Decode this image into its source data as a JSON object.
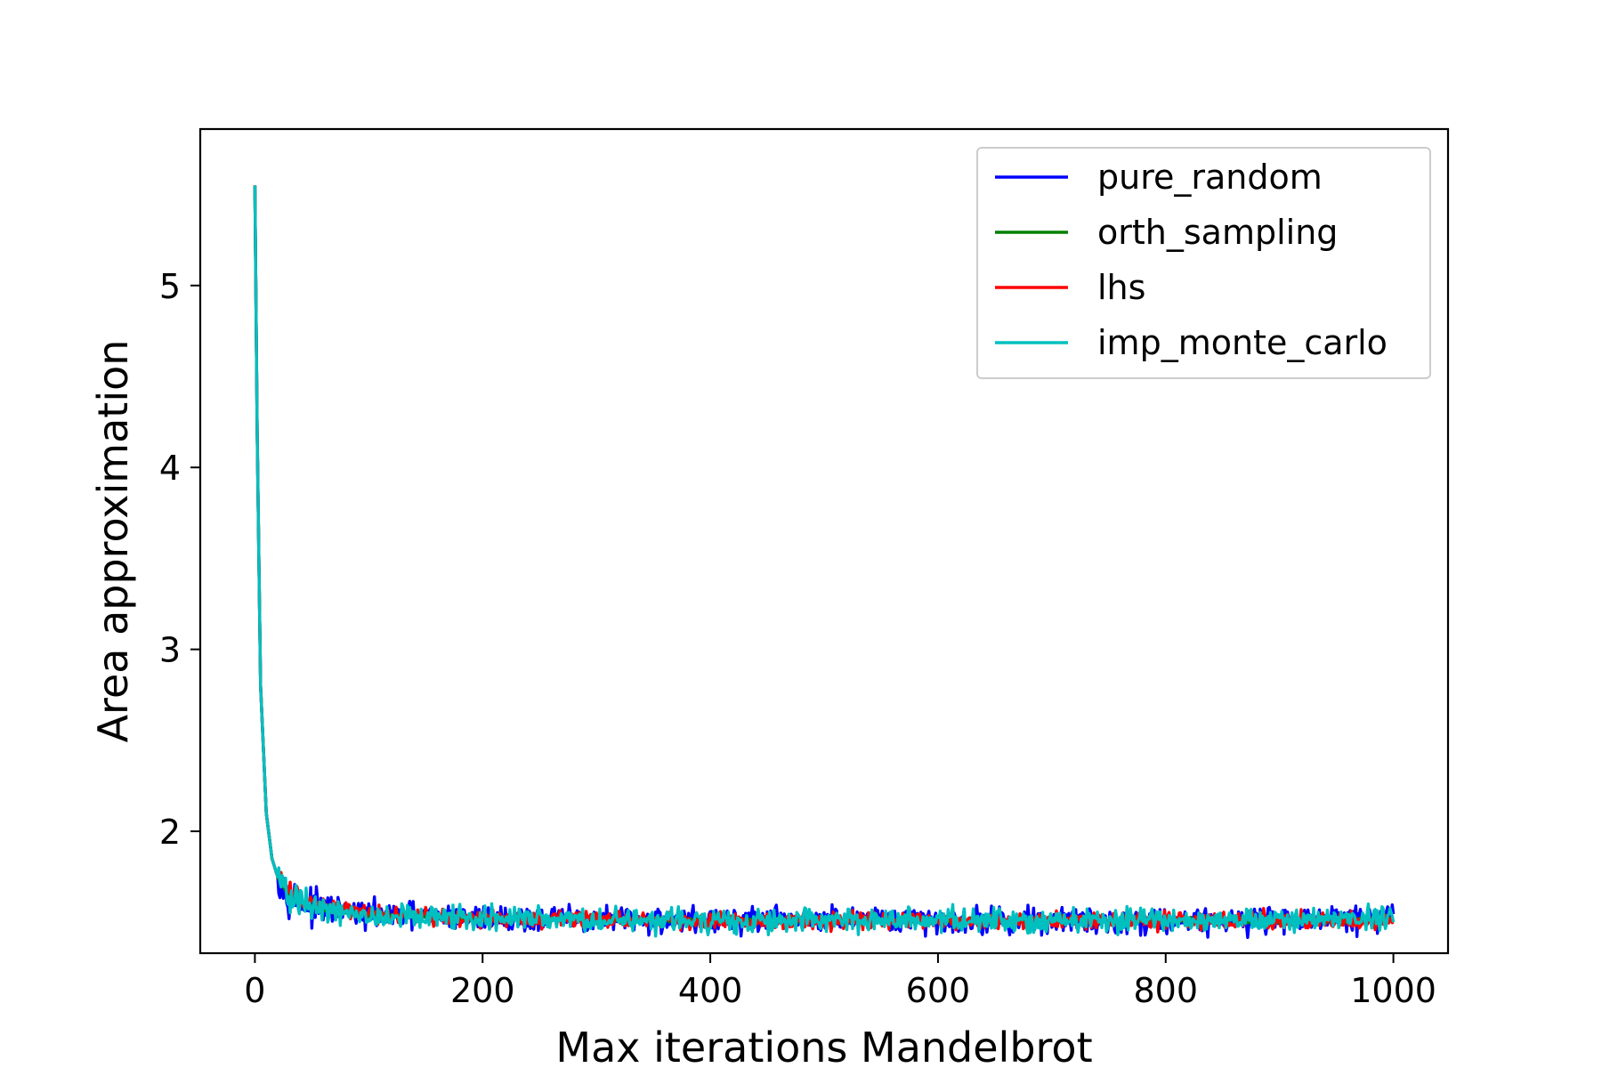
{
  "chart_data": {
    "type": "line",
    "title": "",
    "xlabel": "Max iterations Mandelbrot",
    "ylabel": "Area approximation",
    "xlim": [
      -48,
      1048
    ],
    "ylim": [
      1.33,
      5.86
    ],
    "xticks": [
      0,
      200,
      400,
      600,
      800,
      1000
    ],
    "xtick_labels": [
      "0",
      "200",
      "400",
      "600",
      "800",
      "1000"
    ],
    "yticks": [
      2,
      3,
      4,
      5
    ],
    "ytick_labels": [
      "2",
      "3",
      "4",
      "5"
    ],
    "grid": false,
    "legend_position": "upper right",
    "x_range": [
      0,
      1000
    ],
    "series": [
      {
        "name": "pure_random",
        "color": "#0000ff",
        "start_value": 5.55,
        "plateau_value": 1.507,
        "key_points": [
          [
            0,
            5.55
          ],
          [
            2,
            4.2
          ],
          [
            5,
            2.8
          ],
          [
            10,
            2.1
          ],
          [
            15,
            1.85
          ],
          [
            20,
            1.75
          ],
          [
            30,
            1.65
          ],
          [
            50,
            1.58
          ],
          [
            100,
            1.54
          ],
          [
            200,
            1.52
          ],
          [
            400,
            1.51
          ],
          [
            600,
            1.51
          ],
          [
            800,
            1.51
          ],
          [
            1000,
            1.52
          ]
        ],
        "noise_amplitude": 0.055
      },
      {
        "name": "orth_sampling",
        "color": "#008000",
        "start_value": 5.55,
        "plateau_value": 1.507,
        "key_points": [
          [
            0,
            5.55
          ],
          [
            2,
            4.2
          ],
          [
            5,
            2.8
          ],
          [
            10,
            2.1
          ],
          [
            15,
            1.85
          ],
          [
            20,
            1.75
          ],
          [
            30,
            1.65
          ],
          [
            50,
            1.58
          ],
          [
            100,
            1.54
          ],
          [
            200,
            1.52
          ],
          [
            400,
            1.51
          ],
          [
            600,
            1.51
          ],
          [
            800,
            1.51
          ],
          [
            1000,
            1.51
          ]
        ],
        "noise_amplitude": 0.01
      },
      {
        "name": "lhs",
        "color": "#ff0000",
        "start_value": 5.55,
        "plateau_value": 1.507,
        "key_points": [
          [
            0,
            5.55
          ],
          [
            2,
            4.2
          ],
          [
            5,
            2.8
          ],
          [
            10,
            2.1
          ],
          [
            15,
            1.85
          ],
          [
            20,
            1.75
          ],
          [
            30,
            1.67
          ],
          [
            50,
            1.59
          ],
          [
            100,
            1.55
          ],
          [
            200,
            1.52
          ],
          [
            400,
            1.51
          ],
          [
            600,
            1.51
          ],
          [
            800,
            1.51
          ],
          [
            1000,
            1.51
          ]
        ],
        "noise_amplitude": 0.035
      },
      {
        "name": "imp_monte_carlo",
        "color": "#00bfbf",
        "start_value": 5.55,
        "plateau_value": 1.507,
        "key_points": [
          [
            0,
            5.55
          ],
          [
            2,
            4.2
          ],
          [
            5,
            2.8
          ],
          [
            10,
            2.1
          ],
          [
            15,
            1.85
          ],
          [
            20,
            1.75
          ],
          [
            30,
            1.63
          ],
          [
            50,
            1.57
          ],
          [
            100,
            1.53
          ],
          [
            200,
            1.52
          ],
          [
            400,
            1.51
          ],
          [
            600,
            1.51
          ],
          [
            800,
            1.51
          ],
          [
            1000,
            1.53
          ]
        ],
        "noise_amplitude": 0.05
      }
    ]
  }
}
